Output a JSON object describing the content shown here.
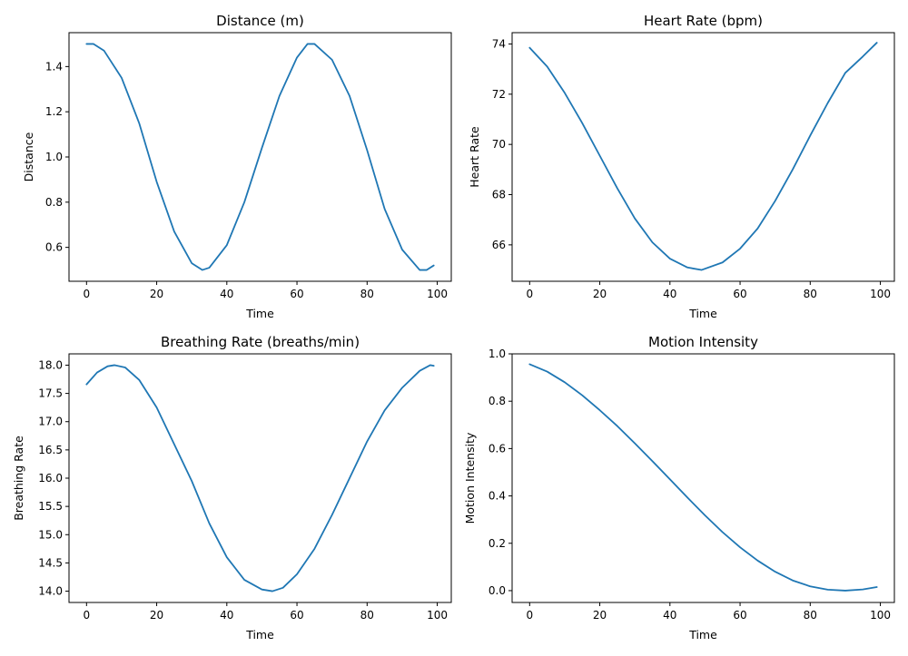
{
  "colors": {
    "series": "#1f77b4",
    "axes": "#000000",
    "background": "#ffffff"
  },
  "chart_data": [
    {
      "type": "line",
      "title": "Distance (m)",
      "xlabel": "Time",
      "ylabel": "Distance",
      "xlim": [
        -5,
        104
      ],
      "ylim": [
        0.45,
        1.55
      ],
      "xticks": [
        0,
        20,
        40,
        60,
        80,
        100
      ],
      "yticks": [
        0.6,
        0.8,
        1.0,
        1.2,
        1.4
      ],
      "xticklabels": [
        "0",
        "20",
        "40",
        "60",
        "80",
        "100"
      ],
      "yticklabels": [
        "0.6",
        "0.8",
        "1.0",
        "1.2",
        "1.4"
      ],
      "grid": false,
      "series": [
        {
          "x": [
            0,
            2,
            5,
            10,
            15,
            20,
            25,
            30,
            33,
            35,
            40,
            45,
            50,
            55,
            60,
            63,
            65,
            70,
            75,
            80,
            85,
            90,
            95,
            97,
            99
          ],
          "values": [
            1.5,
            1.5,
            1.47,
            1.35,
            1.15,
            0.89,
            0.67,
            0.53,
            0.5,
            0.51,
            0.61,
            0.8,
            1.04,
            1.27,
            1.44,
            1.5,
            1.5,
            1.43,
            1.27,
            1.03,
            0.77,
            0.59,
            0.5,
            0.5,
            0.52
          ]
        }
      ]
    },
    {
      "type": "line",
      "title": "Heart Rate (bpm)",
      "xlabel": "Time",
      "ylabel": "Heart Rate",
      "xlim": [
        -5,
        104
      ],
      "ylim": [
        64.55,
        74.45
      ],
      "xticks": [
        0,
        20,
        40,
        60,
        80,
        100
      ],
      "yticks": [
        66,
        68,
        70,
        72,
        74
      ],
      "xticklabels": [
        "0",
        "20",
        "40",
        "60",
        "80",
        "100"
      ],
      "yticklabels": [
        "66",
        "68",
        "70",
        "72",
        "74"
      ],
      "grid": false,
      "series": [
        {
          "x": [
            0,
            5,
            10,
            15,
            20,
            25,
            30,
            35,
            40,
            45,
            49,
            55,
            60,
            65,
            70,
            75,
            80,
            85,
            90,
            95,
            99
          ],
          "values": [
            73.85,
            73.1,
            72.05,
            70.85,
            69.55,
            68.25,
            67.05,
            66.1,
            65.45,
            65.1,
            65.0,
            65.3,
            65.85,
            66.65,
            67.75,
            69.0,
            70.35,
            71.65,
            72.85,
            73.5,
            74.05
          ]
        }
      ]
    },
    {
      "type": "line",
      "title": "Breathing Rate (breaths/min)",
      "xlabel": "Time",
      "ylabel": "Breathing Rate",
      "xlim": [
        -5,
        104
      ],
      "ylim": [
        13.8,
        18.2
      ],
      "xticks": [
        0,
        20,
        40,
        60,
        80,
        100
      ],
      "yticks": [
        14.0,
        14.5,
        15.0,
        15.5,
        16.0,
        16.5,
        17.0,
        17.5,
        18.0
      ],
      "xticklabels": [
        "0",
        "20",
        "40",
        "60",
        "80",
        "100"
      ],
      "yticklabels": [
        "14.0",
        "14.5",
        "15.0",
        "15.5",
        "16.0",
        "16.5",
        "17.0",
        "17.5",
        "18.0"
      ],
      "grid": false,
      "series": [
        {
          "x": [
            0,
            3,
            6,
            8,
            11,
            15,
            20,
            25,
            30,
            35,
            40,
            45,
            50,
            53,
            56,
            60,
            65,
            70,
            75,
            80,
            85,
            90,
            95,
            98,
            99
          ],
          "values": [
            17.66,
            17.87,
            17.98,
            18.0,
            17.96,
            17.74,
            17.25,
            16.6,
            15.95,
            15.2,
            14.6,
            14.2,
            14.03,
            14.0,
            14.06,
            14.3,
            14.75,
            15.35,
            16.0,
            16.65,
            17.2,
            17.6,
            17.9,
            18.0,
            17.99
          ]
        }
      ]
    },
    {
      "type": "line",
      "title": "Motion Intensity",
      "xlabel": "Time",
      "ylabel": "Motion Intensity",
      "xlim": [
        -5,
        104
      ],
      "ylim": [
        -0.05,
        1.0
      ],
      "xticks": [
        0,
        20,
        40,
        60,
        80,
        100
      ],
      "yticks": [
        0.0,
        0.2,
        0.4,
        0.6,
        0.8,
        1.0
      ],
      "xticklabels": [
        "0",
        "20",
        "40",
        "60",
        "80",
        "100"
      ],
      "yticklabels": [
        "0.0",
        "0.2",
        "0.4",
        "0.6",
        "0.8",
        "1.0"
      ],
      "grid": false,
      "series": [
        {
          "x": [
            0,
            5,
            10,
            15,
            20,
            25,
            30,
            35,
            40,
            45,
            50,
            55,
            60,
            65,
            70,
            75,
            80,
            85,
            90,
            95,
            99
          ],
          "values": [
            0.956,
            0.925,
            0.88,
            0.825,
            0.762,
            0.695,
            0.622,
            0.547,
            0.47,
            0.393,
            0.318,
            0.247,
            0.183,
            0.127,
            0.08,
            0.043,
            0.018,
            0.004,
            0.0,
            0.005,
            0.015
          ]
        }
      ]
    }
  ]
}
